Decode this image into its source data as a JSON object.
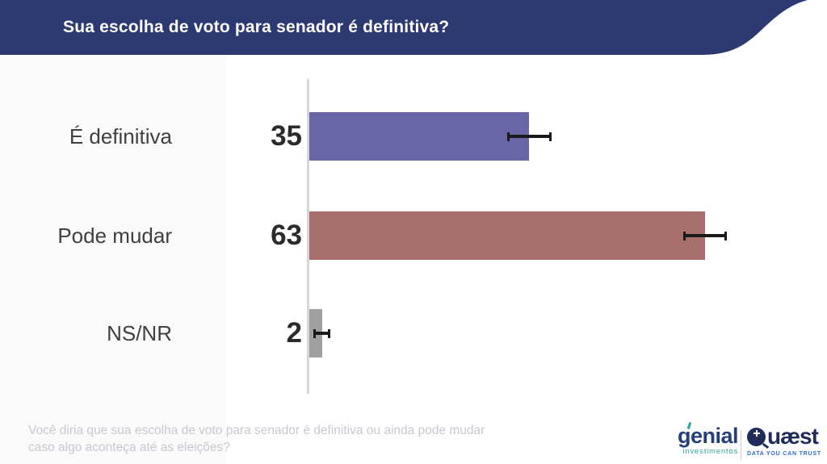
{
  "header": {
    "title": "Sua escolha de voto para senador é definitiva?",
    "bg_color": "#2d3a72",
    "text_color": "#ffffff"
  },
  "chart_data": {
    "type": "bar",
    "orientation": "horizontal",
    "title": "Sua escolha de voto para senador é definitiva?",
    "categories": [
      "É definitiva",
      "Pode mudar",
      "NS/NR"
    ],
    "values": [
      35,
      63,
      2
    ],
    "value_labels": [
      "35",
      "63",
      "2"
    ],
    "error_margin": [
      3.5,
      3.5,
      1.3
    ],
    "bar_colors": [
      "#6966a8",
      "#a96f6d",
      "#a0a0a0"
    ],
    "axis_color": "#d6d6d6",
    "xlim": [
      0,
      80
    ],
    "grid": false,
    "legend": false
  },
  "footer": {
    "question_line1": "Você diria que sua escolha de voto para senador é definitiva ou ainda pode mudar",
    "question_line2": "caso algo aconteça até as eleições?"
  },
  "branding": {
    "genial": {
      "wordmark": "genial",
      "subtitle": "investimentos",
      "navy": "#24407a",
      "teal": "#2ca6a0"
    },
    "quaest": {
      "wordmark_rest": "uæst",
      "tagline": "DATA YOU CAN TRUST",
      "navy": "#1f2c5c",
      "blue": "#2e6ad1"
    }
  }
}
